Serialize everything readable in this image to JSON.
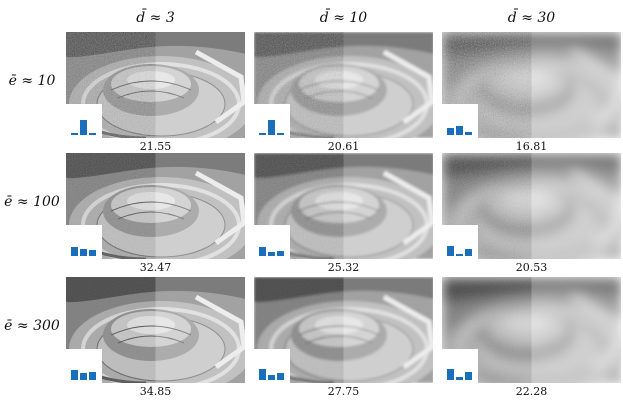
{
  "columns": [
    {
      "label": "d̄ ≈ 3"
    },
    {
      "label": "d̄ ≈ 10"
    },
    {
      "label": "d̄ ≈ 30"
    }
  ],
  "rows": [
    {
      "label": "ē ≈ 10",
      "cells": [
        {
          "value": 21.55,
          "bars": [
            2,
            15,
            2
          ]
        },
        {
          "value": 20.61,
          "bars": [
            2,
            15,
            2
          ]
        },
        {
          "value": 16.81,
          "bars": [
            7,
            9,
            3
          ]
        }
      ]
    },
    {
      "label": "ē ≈ 100",
      "cells": [
        {
          "value": 32.47,
          "bars": [
            9,
            7,
            6
          ]
        },
        {
          "value": 25.32,
          "bars": [
            9,
            4,
            5
          ]
        },
        {
          "value": 20.53,
          "bars": [
            10,
            2,
            7
          ]
        }
      ]
    },
    {
      "label": "ē ≈ 300",
      "cells": [
        {
          "value": 34.85,
          "bars": [
            10,
            7,
            8
          ]
        },
        {
          "value": 27.75,
          "bars": [
            11,
            5,
            7
          ]
        },
        {
          "value": 22.28,
          "bars": [
            11,
            3,
            8
          ]
        }
      ]
    }
  ]
}
